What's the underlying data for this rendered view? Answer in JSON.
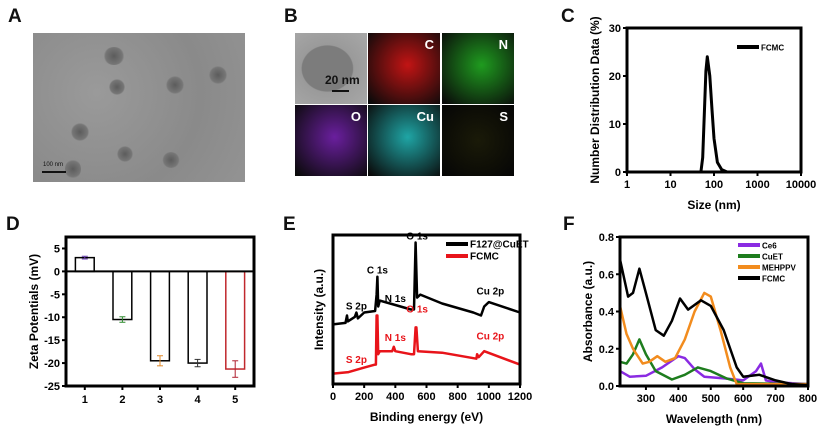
{
  "panels": {
    "a": "A",
    "b": "B",
    "c": "C",
    "d": "D",
    "e": "E",
    "f": "F"
  },
  "tem_scale_bar": "100 nm",
  "eds": {
    "scale_bar": "20 nm",
    "elements": [
      "C",
      "N",
      "O",
      "Cu",
      "S"
    ],
    "colors": [
      "#c21414",
      "#1f9b1f",
      "#6a1f9e",
      "#1fa5a5",
      "#a8a020"
    ]
  },
  "chart_data": [
    {
      "panel": "C",
      "type": "line",
      "xlabel": "Size (nm)",
      "ylabel": "Number Distribution Data (%)",
      "xscale": "log",
      "xlim": [
        1,
        10000
      ],
      "ylim": [
        0,
        30
      ],
      "xticks": [
        1,
        10,
        100,
        1000,
        10000
      ],
      "xtick_labels": [
        "1",
        "10",
        "100",
        "1000",
        "10000"
      ],
      "yticks": [
        0,
        10,
        20,
        30
      ],
      "ytick_labels": [
        "0",
        "10",
        "20",
        "30"
      ],
      "legend": "top-right",
      "series": [
        {
          "name": "FCMC",
          "color": "#000000",
          "x": [
            1,
            40,
            50,
            55,
            60,
            65,
            70,
            80,
            90,
            100,
            120,
            150,
            200,
            10000
          ],
          "y": [
            0,
            0,
            0,
            3,
            12,
            21,
            24,
            20,
            13,
            7,
            2,
            0.5,
            0,
            0
          ]
        }
      ]
    },
    {
      "panel": "D",
      "type": "bar",
      "xlabel": "",
      "ylabel": "Zeta Potentials (mV)",
      "ylim": [
        -25,
        7.5
      ],
      "categories": [
        "1",
        "2",
        "3",
        "4",
        "5"
      ],
      "yticks": [
        5,
        0,
        -5,
        -10,
        -15,
        -20,
        -25
      ],
      "ytick_labels": [
        "5",
        "0",
        "-5",
        "-10",
        "-15",
        "-20",
        "-25"
      ],
      "values": [
        3,
        -10.5,
        -19.5,
        -20,
        -21.3
      ],
      "errors": [
        0.3,
        0.6,
        1.1,
        0.8,
        1.8
      ],
      "bar_colors": [
        "#000000",
        "#000000",
        "#000000",
        "#000000",
        "#c0282d"
      ],
      "error_colors": [
        "#6a3fb0",
        "#2e8b2e",
        "#e08a2a",
        "#333333",
        "#b02030"
      ]
    },
    {
      "panel": "E",
      "type": "line",
      "xlabel": "Binding energy (eV)",
      "ylabel": "Intensity (a.u.)",
      "xlim": [
        0,
        1200
      ],
      "ylim": [
        0,
        100
      ],
      "xticks": [
        0,
        200,
        400,
        600,
        800,
        1000,
        1200
      ],
      "xtick_labels": [
        "0",
        "200",
        "400",
        "600",
        "800",
        "1000",
        "1200"
      ],
      "legend": "top-right",
      "series": [
        {
          "name": "F127@CuET",
          "color": "#000000",
          "x": [
            0,
            80,
            90,
            95,
            140,
            150,
            160,
            200,
            270,
            280,
            285,
            290,
            300,
            400,
            500,
            520,
            530,
            540,
            560,
            700,
            900,
            950,
            970,
            1000,
            1200
          ],
          "y": [
            40,
            41,
            46,
            42,
            45,
            48,
            44,
            48,
            49,
            60,
            72,
            52,
            56,
            53,
            50,
            50,
            95,
            58,
            60,
            54,
            48,
            46,
            52,
            55,
            48
          ]
        },
        {
          "name": "FCMC",
          "color": "#e8141a",
          "x": [
            0,
            100,
            200,
            270,
            275,
            280,
            285,
            290,
            300,
            380,
            390,
            400,
            500,
            520,
            530,
            535,
            545,
            700,
            920,
            925,
            935,
            970,
            1200
          ],
          "y": [
            7,
            8,
            11,
            13,
            13,
            46,
            46,
            20,
            22,
            22,
            25,
            22,
            20,
            20,
            38,
            38,
            22,
            21,
            17,
            20,
            18,
            22,
            13
          ]
        }
      ],
      "annotations": [
        {
          "text": "S 2p",
          "series": "F127@CuET"
        },
        {
          "text": "C 1s",
          "series": "F127@CuET"
        },
        {
          "text": "N 1s",
          "series": "F127@CuET"
        },
        {
          "text": "O 1s",
          "series": "F127@CuET"
        },
        {
          "text": "Cu 2p",
          "series": "F127@CuET"
        },
        {
          "text": "S 2p",
          "series": "FCMC"
        },
        {
          "text": "N 1s",
          "series": "FCMC"
        },
        {
          "text": "O 1s",
          "series": "FCMC"
        },
        {
          "text": "Cu 2p",
          "series": "FCMC"
        }
      ]
    },
    {
      "panel": "F",
      "type": "line",
      "xlabel": "Wavelength (nm)",
      "ylabel": "Absorbance (a.u.)",
      "xlim": [
        220,
        800
      ],
      "ylim": [
        0,
        0.8
      ],
      "xticks": [
        300,
        400,
        500,
        600,
        700,
        800
      ],
      "xtick_labels": [
        "300",
        "400",
        "500",
        "600",
        "700",
        "800"
      ],
      "yticks": [
        0,
        0.2,
        0.4,
        0.6,
        0.8
      ],
      "ytick_labels": [
        "0.0",
        "0.2",
        "0.4",
        "0.6",
        "0.8"
      ],
      "legend": "top-right",
      "series": [
        {
          "name": "Ce6",
          "color": "#8a2be2",
          "x": [
            220,
            250,
            300,
            350,
            400,
            420,
            450,
            480,
            550,
            600,
            640,
            655,
            670,
            700,
            800
          ],
          "y": [
            0.08,
            0.05,
            0.055,
            0.1,
            0.16,
            0.15,
            0.09,
            0.05,
            0.04,
            0.03,
            0.08,
            0.12,
            0.03,
            0.02,
            0.01
          ]
        },
        {
          "name": "CuET",
          "color": "#1e7d1e",
          "x": [
            220,
            240,
            260,
            280,
            300,
            330,
            380,
            420,
            460,
            500,
            550,
            600,
            800
          ],
          "y": [
            0.13,
            0.12,
            0.17,
            0.25,
            0.17,
            0.08,
            0.035,
            0.06,
            0.1,
            0.08,
            0.04,
            0.015,
            0.01
          ]
        },
        {
          "name": "MEHPPV",
          "color": "#f28c1e",
          "x": [
            220,
            240,
            260,
            290,
            310,
            335,
            360,
            390,
            420,
            450,
            480,
            500,
            530,
            560,
            580,
            800
          ],
          "y": [
            0.43,
            0.28,
            0.2,
            0.12,
            0.13,
            0.16,
            0.13,
            0.15,
            0.25,
            0.4,
            0.5,
            0.48,
            0.3,
            0.1,
            0.01,
            0.01
          ]
        },
        {
          "name": "FCMC",
          "color": "#000000",
          "x": [
            220,
            245,
            260,
            280,
            300,
            330,
            355,
            380,
            405,
            430,
            470,
            500,
            540,
            580,
            600,
            650,
            700,
            750,
            800
          ],
          "y": [
            0.68,
            0.48,
            0.5,
            0.63,
            0.5,
            0.3,
            0.27,
            0.35,
            0.47,
            0.41,
            0.46,
            0.43,
            0.3,
            0.1,
            0.05,
            0.06,
            0.03,
            0.01,
            0.005
          ]
        }
      ]
    }
  ]
}
